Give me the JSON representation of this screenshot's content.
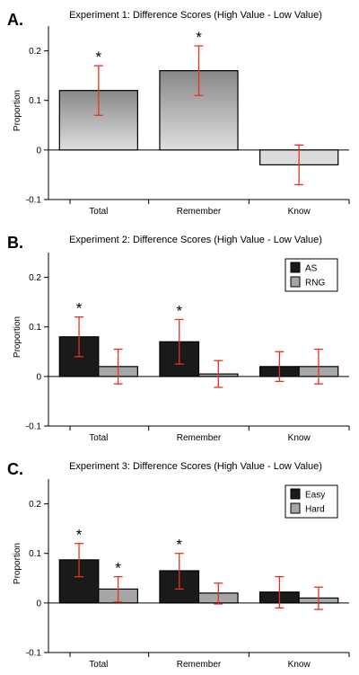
{
  "chart_data": [
    {
      "panel": "A.",
      "type": "bar",
      "title": "Experiment 1: Difference Scores (High Value - Low Value)",
      "ylabel": "Proportion",
      "ylim": [
        -0.1,
        0.25
      ],
      "yticks": [
        -0.1,
        0,
        0.1,
        0.2
      ],
      "ytick_labels": [
        "-0.1",
        "0",
        "0.1",
        "0.2"
      ],
      "categories": [
        "Total",
        "Remember",
        "Know"
      ],
      "style": "gradient",
      "series": [
        {
          "values": [
            0.12,
            0.16,
            -0.03
          ],
          "err_low": [
            0.07,
            0.11,
            -0.07
          ],
          "err_high": [
            0.17,
            0.21,
            0.01
          ],
          "sig": [
            true,
            true,
            false
          ]
        }
      ],
      "legend": null
    },
    {
      "panel": "B.",
      "type": "bar",
      "title": "Experiment 2: Difference Scores (High Value - Low Value)",
      "ylabel": "Proportion",
      "ylim": [
        -0.1,
        0.25
      ],
      "yticks": [
        -0.1,
        0,
        0.1,
        0.2
      ],
      "ytick_labels": [
        "-0.1",
        "0",
        "0.1",
        "0.2"
      ],
      "categories": [
        "Total",
        "Remember",
        "Know"
      ],
      "style": "grouped",
      "series": [
        {
          "name": "AS",
          "color": "#1a1a1a",
          "values": [
            0.08,
            0.07,
            0.02
          ],
          "err_low": [
            0.04,
            0.025,
            -0.01
          ],
          "err_high": [
            0.12,
            0.115,
            0.05
          ],
          "sig": [
            true,
            true,
            false
          ]
        },
        {
          "name": "RNG",
          "color": "#a6a6a6",
          "values": [
            0.02,
            0.005,
            0.02
          ],
          "err_low": [
            -0.015,
            -0.022,
            -0.015
          ],
          "err_high": [
            0.055,
            0.032,
            0.055
          ],
          "sig": [
            false,
            false,
            false
          ]
        }
      ],
      "legend": "top-right"
    },
    {
      "panel": "C.",
      "type": "bar",
      "title": "Experiment 3: Difference Scores (High Value - Low Value)",
      "ylabel": "Proportion",
      "ylim": [
        -0.1,
        0.25
      ],
      "yticks": [
        -0.1,
        0,
        0.1,
        0.2
      ],
      "ytick_labels": [
        "-0.1",
        "0",
        "0.1",
        "0.2"
      ],
      "categories": [
        "Total",
        "Remember",
        "Know"
      ],
      "style": "grouped",
      "series": [
        {
          "name": "Easy",
          "color": "#1a1a1a",
          "values": [
            0.087,
            0.065,
            0.022
          ],
          "err_low": [
            0.053,
            0.028,
            -0.01
          ],
          "err_high": [
            0.12,
            0.1,
            0.053
          ],
          "sig": [
            true,
            true,
            false
          ]
        },
        {
          "name": "Hard",
          "color": "#a6a6a6",
          "values": [
            0.028,
            0.02,
            0.01
          ],
          "err_low": [
            0.002,
            -0.002,
            -0.013
          ],
          "err_high": [
            0.053,
            0.04,
            0.032
          ],
          "sig": [
            true,
            false,
            false
          ]
        }
      ],
      "legend": "top-right"
    }
  ],
  "colors": {
    "error_bar": "#e8321e",
    "gradient_top": "#888888",
    "gradient_bottom": "#dedede",
    "negative_bar": "#dcdcdc"
  }
}
